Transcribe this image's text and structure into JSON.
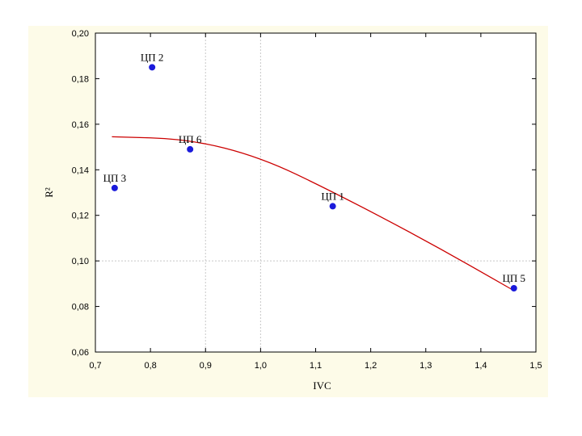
{
  "chart_data": {
    "type": "scatter",
    "xlabel": "IVC",
    "ylabel": "R²",
    "xlim": [
      0.7,
      1.5
    ],
    "ylim": [
      0.06,
      0.2
    ],
    "xticks": [
      0.7,
      0.8,
      0.9,
      1.0,
      1.1,
      1.2,
      1.3,
      1.4,
      1.5
    ],
    "xtick_labels": [
      "0,7",
      "0,8",
      "0,9",
      "1,0",
      "1,1",
      "1,2",
      "1,3",
      "1,4",
      "1,5"
    ],
    "yticks": [
      0.06,
      0.08,
      0.1,
      0.12,
      0.14,
      0.16,
      0.18,
      0.2
    ],
    "ytick_labels": [
      "0,06",
      "0,08",
      "0,10",
      "0,12",
      "0,14",
      "0,16",
      "0,18",
      "0,20"
    ],
    "grid": true,
    "points": [
      {
        "label": "ЦП 2",
        "x": 0.803,
        "y": 0.185
      },
      {
        "label": "ЦП 6",
        "x": 0.872,
        "y": 0.149
      },
      {
        "label": "ЦП 3",
        "x": 0.735,
        "y": 0.132
      },
      {
        "label": "ЦП 1",
        "x": 1.131,
        "y": 0.124
      },
      {
        "label": "ЦП 5",
        "x": 1.46,
        "y": 0.088
      }
    ],
    "fit_line": {
      "type": "quadratic",
      "x_range": [
        0.73,
        1.46
      ],
      "points": [
        [
          0.73,
          0.1545
        ],
        [
          0.87,
          0.1535
        ],
        [
          1.0,
          0.1455
        ],
        [
          1.13,
          0.1305
        ],
        [
          1.3,
          0.109
        ],
        [
          1.46,
          0.087
        ]
      ]
    },
    "colors": {
      "points": "#1a1adb",
      "fit_line": "#cc0000",
      "grid": "#c8c8c8",
      "panel": "#fdfbe8",
      "plot_area": "#ffffff"
    }
  }
}
